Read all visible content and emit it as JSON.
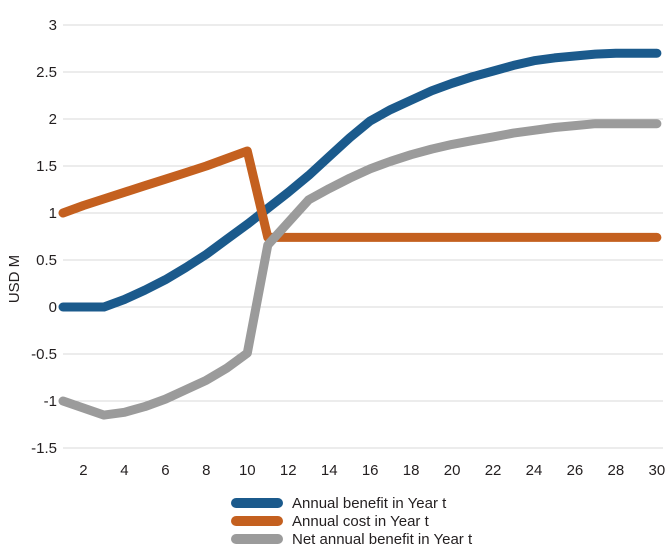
{
  "chart_data": {
    "type": "line",
    "title": "",
    "xlabel": "",
    "ylabel": "USD M",
    "x": [
      2,
      4,
      6,
      8,
      10,
      12,
      14,
      16,
      18,
      20,
      22,
      24,
      26,
      28,
      30
    ],
    "xlim": [
      1,
      30.3
    ],
    "ylim": [
      -1.5,
      3
    ],
    "xticks": [
      "2",
      "4",
      "6",
      "8",
      "10",
      "12",
      "14",
      "16",
      "18",
      "20",
      "22",
      "24",
      "26",
      "28",
      "30"
    ],
    "yticks": [
      "3",
      "2.5",
      "2",
      "1.5",
      "1",
      "0.5",
      "0",
      "-0.5",
      "-1",
      "-1.5"
    ],
    "ytick_values": [
      3,
      2.5,
      2,
      1.5,
      1,
      0.5,
      0,
      -0.5,
      -1,
      -1.5
    ],
    "grid": true,
    "legend_position": "bottom",
    "series": [
      {
        "name": "Annual benefit in Year t",
        "color": "#1b5a8c",
        "points": [
          [
            1,
            0
          ],
          [
            3,
            0
          ],
          [
            4,
            0.08
          ],
          [
            5,
            0.18
          ],
          [
            6,
            0.29
          ],
          [
            7,
            0.42
          ],
          [
            8,
            0.56
          ],
          [
            9,
            0.72
          ],
          [
            10,
            0.88
          ],
          [
            11,
            1.05
          ],
          [
            12,
            1.22
          ],
          [
            13,
            1.4
          ],
          [
            14,
            1.6
          ],
          [
            15,
            1.8
          ],
          [
            16,
            1.98
          ],
          [
            17,
            2.1
          ],
          [
            18,
            2.2
          ],
          [
            19,
            2.3
          ],
          [
            20,
            2.38
          ],
          [
            21,
            2.45
          ],
          [
            22,
            2.51
          ],
          [
            23,
            2.57
          ],
          [
            24,
            2.62
          ],
          [
            25,
            2.65
          ],
          [
            26,
            2.67
          ],
          [
            27,
            2.69
          ],
          [
            28,
            2.7
          ],
          [
            29,
            2.7
          ],
          [
            30,
            2.7
          ]
        ]
      },
      {
        "name": "Annual cost in Year t",
        "color": "#c4601f",
        "points": [
          [
            1,
            1
          ],
          [
            2,
            1.08
          ],
          [
            3,
            1.15
          ],
          [
            4,
            1.22
          ],
          [
            5,
            1.29
          ],
          [
            6,
            1.36
          ],
          [
            7,
            1.43
          ],
          [
            8,
            1.5
          ],
          [
            9,
            1.58
          ],
          [
            10,
            1.66
          ],
          [
            11,
            0.74
          ],
          [
            12,
            0.74
          ],
          [
            13,
            0.74
          ],
          [
            14,
            0.74
          ],
          [
            15,
            0.74
          ],
          [
            16,
            0.74
          ],
          [
            17,
            0.74
          ],
          [
            18,
            0.74
          ],
          [
            19,
            0.74
          ],
          [
            20,
            0.74
          ],
          [
            21,
            0.74
          ],
          [
            22,
            0.74
          ],
          [
            23,
            0.74
          ],
          [
            24,
            0.74
          ],
          [
            25,
            0.74
          ],
          [
            26,
            0.74
          ],
          [
            27,
            0.74
          ],
          [
            28,
            0.74
          ],
          [
            29,
            0.74
          ],
          [
            30,
            0.74
          ]
        ]
      },
      {
        "name": "Net annual benefit in Year t",
        "color": "#9b9b9b",
        "points": [
          [
            1,
            -1
          ],
          [
            3,
            -1.15
          ],
          [
            4,
            -1.12
          ],
          [
            5,
            -1.06
          ],
          [
            6,
            -0.98
          ],
          [
            7,
            -0.88
          ],
          [
            8,
            -0.78
          ],
          [
            9,
            -0.65
          ],
          [
            10,
            -0.49
          ],
          [
            11,
            0.66
          ],
          [
            12,
            0.9
          ],
          [
            13,
            1.14
          ],
          [
            14,
            1.26
          ],
          [
            15,
            1.37
          ],
          [
            16,
            1.47
          ],
          [
            17,
            1.55
          ],
          [
            18,
            1.62
          ],
          [
            19,
            1.68
          ],
          [
            20,
            1.73
          ],
          [
            21,
            1.77
          ],
          [
            22,
            1.81
          ],
          [
            23,
            1.85
          ],
          [
            24,
            1.88
          ],
          [
            25,
            1.91
          ],
          [
            26,
            1.93
          ],
          [
            27,
            1.95
          ],
          [
            28,
            1.95
          ],
          [
            29,
            1.95
          ],
          [
            30,
            1.95
          ]
        ]
      }
    ]
  }
}
